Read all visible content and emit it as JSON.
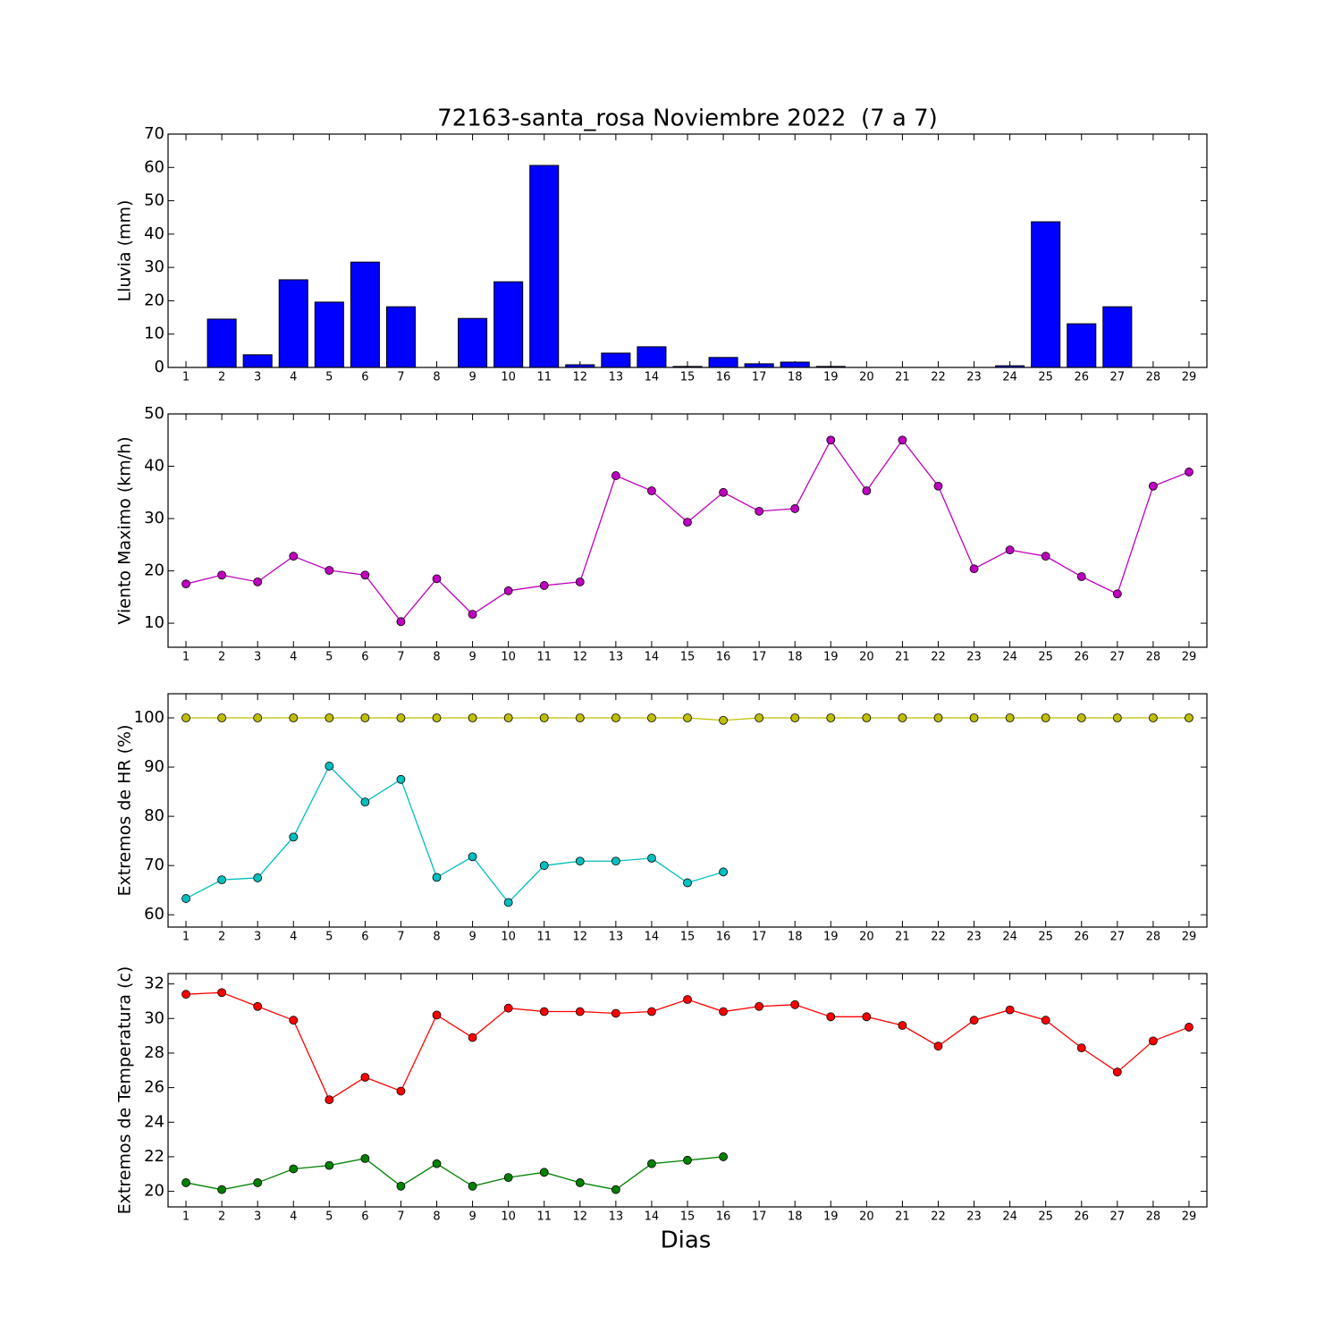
{
  "chart_data": [
    {
      "type": "bar",
      "title": "72163-santa_rosa Noviembre 2022  (7 a 7)",
      "y_label": "Lluvia (mm)",
      "x": [
        1,
        2,
        3,
        4,
        5,
        6,
        7,
        8,
        9,
        10,
        11,
        12,
        13,
        14,
        15,
        16,
        17,
        18,
        19,
        20,
        21,
        22,
        23,
        24,
        25,
        26,
        27,
        28,
        29
      ],
      "values": [
        0,
        14.5,
        3.8,
        26.3,
        19.6,
        31.6,
        18.2,
        0,
        14.7,
        25.7,
        60.6,
        0.8,
        4.3,
        6.2,
        0.3,
        3.0,
        1.1,
        1.6,
        0.3,
        0,
        0,
        0,
        0,
        0.5,
        43.7,
        13.1,
        18.2,
        0,
        0
      ],
      "color": "#0000ff",
      "xlim": [
        0.5,
        29.5
      ],
      "ylim": [
        0,
        70
      ],
      "yticks": [
        0,
        10,
        20,
        30,
        40,
        50,
        60,
        70
      ]
    },
    {
      "type": "line",
      "y_label": "Viento Maximo (km/h)",
      "x": [
        1,
        2,
        3,
        4,
        5,
        6,
        7,
        8,
        9,
        10,
        11,
        12,
        13,
        14,
        15,
        16,
        17,
        18,
        19,
        20,
        21,
        22,
        23,
        24,
        25,
        26,
        27,
        28,
        29
      ],
      "series": [
        {
          "color": "#bf00bf",
          "values": [
            17.5,
            19.2,
            17.9,
            22.8,
            20.1,
            19.2,
            10.3,
            18.5,
            11.7,
            16.2,
            17.2,
            17.9,
            38.2,
            35.3,
            29.3,
            35.0,
            31.4,
            31.9,
            45.0,
            35.3,
            45.0,
            36.2,
            20.4,
            24.0,
            22.8,
            18.9,
            15.6,
            36.2,
            38.9
          ]
        }
      ],
      "xlim": [
        0.5,
        29.5
      ],
      "ylim": [
        5.4,
        50
      ],
      "yticks": [
        10,
        20,
        30,
        40,
        50
      ]
    },
    {
      "type": "line",
      "y_label": "Extremos de HR (%)",
      "x": [
        1,
        2,
        3,
        4,
        5,
        6,
        7,
        8,
        9,
        10,
        11,
        12,
        13,
        14,
        15,
        16,
        17,
        18,
        19,
        20,
        21,
        22,
        23,
        24,
        25,
        26,
        27,
        28,
        29
      ],
      "series": [
        {
          "color": "#bfbf00",
          "values": [
            100,
            100,
            100,
            100,
            100,
            100,
            100,
            100,
            100,
            100,
            100,
            100,
            100,
            100,
            100,
            99.5,
            100,
            100,
            100,
            100,
            100,
            100,
            100,
            100,
            100,
            100,
            100,
            100,
            100
          ]
        },
        {
          "color": "#00bfbf",
          "values": [
            63.3,
            67.1,
            67.5,
            75.8,
            90.2,
            82.9,
            87.5,
            67.6,
            71.8,
            62.5,
            70.0,
            70.9,
            70.9,
            71.5,
            66.5,
            68.7,
            null,
            null,
            null,
            null,
            null,
            null,
            null,
            null,
            null,
            null,
            null,
            null,
            null
          ]
        }
      ],
      "xlim": [
        0.5,
        29.5
      ],
      "ylim": [
        57.5,
        104.9
      ],
      "yticks": [
        60,
        70,
        80,
        90,
        100
      ]
    },
    {
      "type": "line",
      "y_label": "Extremos de Temperatura (c)",
      "x_label": "Dias",
      "x": [
        1,
        2,
        3,
        4,
        5,
        6,
        7,
        8,
        9,
        10,
        11,
        12,
        13,
        14,
        15,
        16,
        17,
        18,
        19,
        20,
        21,
        22,
        23,
        24,
        25,
        26,
        27,
        28,
        29
      ],
      "series": [
        {
          "color": "#ff0000",
          "values": [
            31.4,
            31.5,
            30.7,
            29.9,
            25.3,
            26.6,
            25.8,
            30.2,
            28.9,
            30.6,
            30.4,
            30.4,
            30.3,
            30.4,
            31.1,
            30.4,
            30.7,
            30.8,
            30.1,
            30.1,
            29.6,
            28.4,
            29.9,
            30.5,
            29.9,
            28.3,
            26.9,
            28.7,
            29.5
          ]
        },
        {
          "color": "#008000",
          "values": [
            20.5,
            20.1,
            20.5,
            21.3,
            21.5,
            21.9,
            20.3,
            21.6,
            20.3,
            20.8,
            21.1,
            20.5,
            20.1,
            21.6,
            21.8,
            22.0,
            null,
            null,
            null,
            null,
            null,
            null,
            null,
            null,
            null,
            null,
            null,
            null,
            null
          ]
        }
      ],
      "xlim": [
        0.5,
        29.5
      ],
      "ylim": [
        19.1,
        32.6
      ],
      "yticks": [
        20,
        22,
        24,
        26,
        28,
        30,
        32
      ]
    }
  ]
}
